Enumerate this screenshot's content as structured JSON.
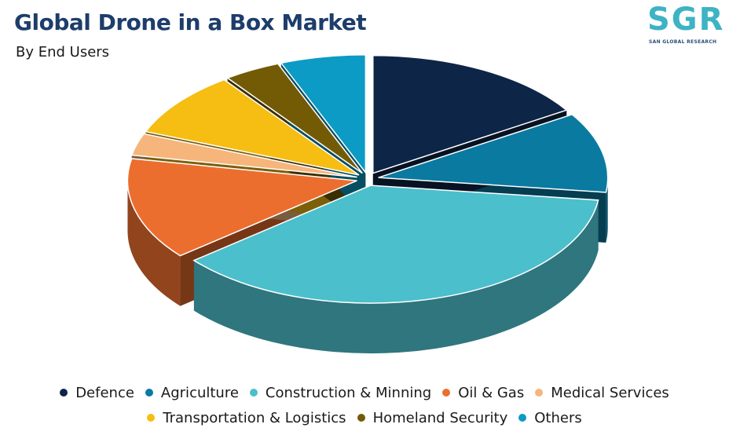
{
  "header": {
    "title": "Global Drone in a Box Market",
    "subtitle": "By End Users"
  },
  "logo": {
    "letters": "SGR",
    "caption": "SAN GLOBAL RESEARCH"
  },
  "chart_data": {
    "type": "pie",
    "style": "3d-exploded",
    "categories": [
      "Defence",
      "Agriculture",
      "Construction & Minning",
      "Oil & Gas",
      "Medical Services",
      "Transportation & Logistics",
      "Homeland Security",
      "Others"
    ],
    "values": [
      16,
      11,
      37,
      14,
      3,
      9,
      4,
      6
    ],
    "colors": [
      "#0d2546",
      "#0a7aa1",
      "#4bbfcc",
      "#ec6e2e",
      "#f6b57b",
      "#f6bd12",
      "#735b06",
      "#0b9bc4"
    ],
    "legend": {
      "position": "bottom"
    }
  }
}
